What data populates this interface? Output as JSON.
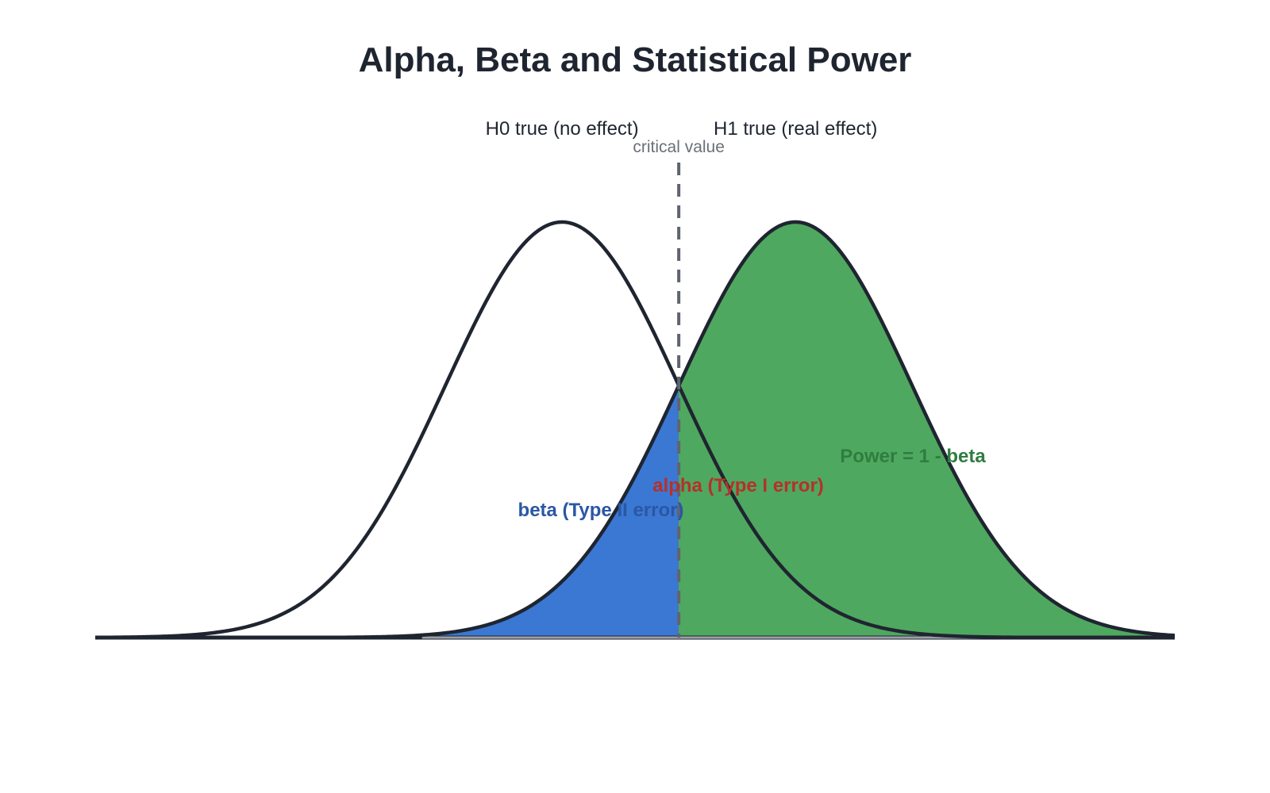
{
  "chart_data": {
    "type": "area",
    "title": "Alpha, Beta and Statistical Power",
    "xlabel": "",
    "ylabel": "",
    "xlim": [
      -4,
      5.25
    ],
    "ylim": [
      0,
      0.4
    ],
    "grid": false,
    "legend": "none",
    "critical_value": {
      "x": 1.0,
      "label": "critical value",
      "color": "#5f6470"
    },
    "distributions": [
      {
        "name": "H0",
        "label": "H0 true (no effect)",
        "mean": 0,
        "sd": 1,
        "fill": "#ffffff",
        "stroke": "#1f2530"
      },
      {
        "name": "H1",
        "label": "H1 true (real effect)",
        "mean": 2,
        "sd": 1,
        "fill": "#4fa85f",
        "stroke": "#1f2530"
      }
    ],
    "regions": [
      {
        "name": "beta",
        "label": "beta (Type II error)",
        "distribution": "H1",
        "from": -4,
        "to": 1.0,
        "fill": "#3b78d4",
        "text_color": "#2a57a5"
      },
      {
        "name": "alpha",
        "label": "alpha (Type I error)",
        "distribution": "H0",
        "from": 1.0,
        "to": 5.25,
        "fill": "#dc4038",
        "text_color": "#b5312b"
      },
      {
        "name": "power",
        "label": "Power = 1 - beta",
        "distribution": "H1",
        "from": 1.0,
        "to": 5.25,
        "fill": "#4fa85f",
        "text_color": "#2f7d40"
      }
    ]
  }
}
